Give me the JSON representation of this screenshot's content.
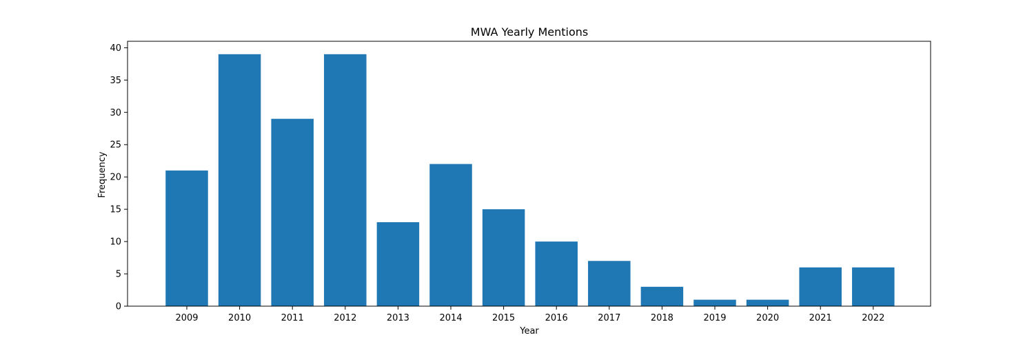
{
  "chart_data": {
    "type": "bar",
    "title": "MWA Yearly Mentions",
    "xlabel": "Year",
    "ylabel": "Frequency",
    "categories": [
      "2009",
      "2010",
      "2011",
      "2012",
      "2013",
      "2014",
      "2015",
      "2016",
      "2017",
      "2018",
      "2019",
      "2020",
      "2021",
      "2022"
    ],
    "values": [
      21,
      39,
      29,
      39,
      13,
      22,
      15,
      10,
      7,
      3,
      1,
      1,
      6,
      6
    ],
    "ylim": [
      0,
      41
    ],
    "yticks": [
      0,
      5,
      10,
      15,
      20,
      25,
      30,
      35,
      40
    ],
    "bar_color": "#1f77b4",
    "grid": false,
    "legend": "none"
  }
}
